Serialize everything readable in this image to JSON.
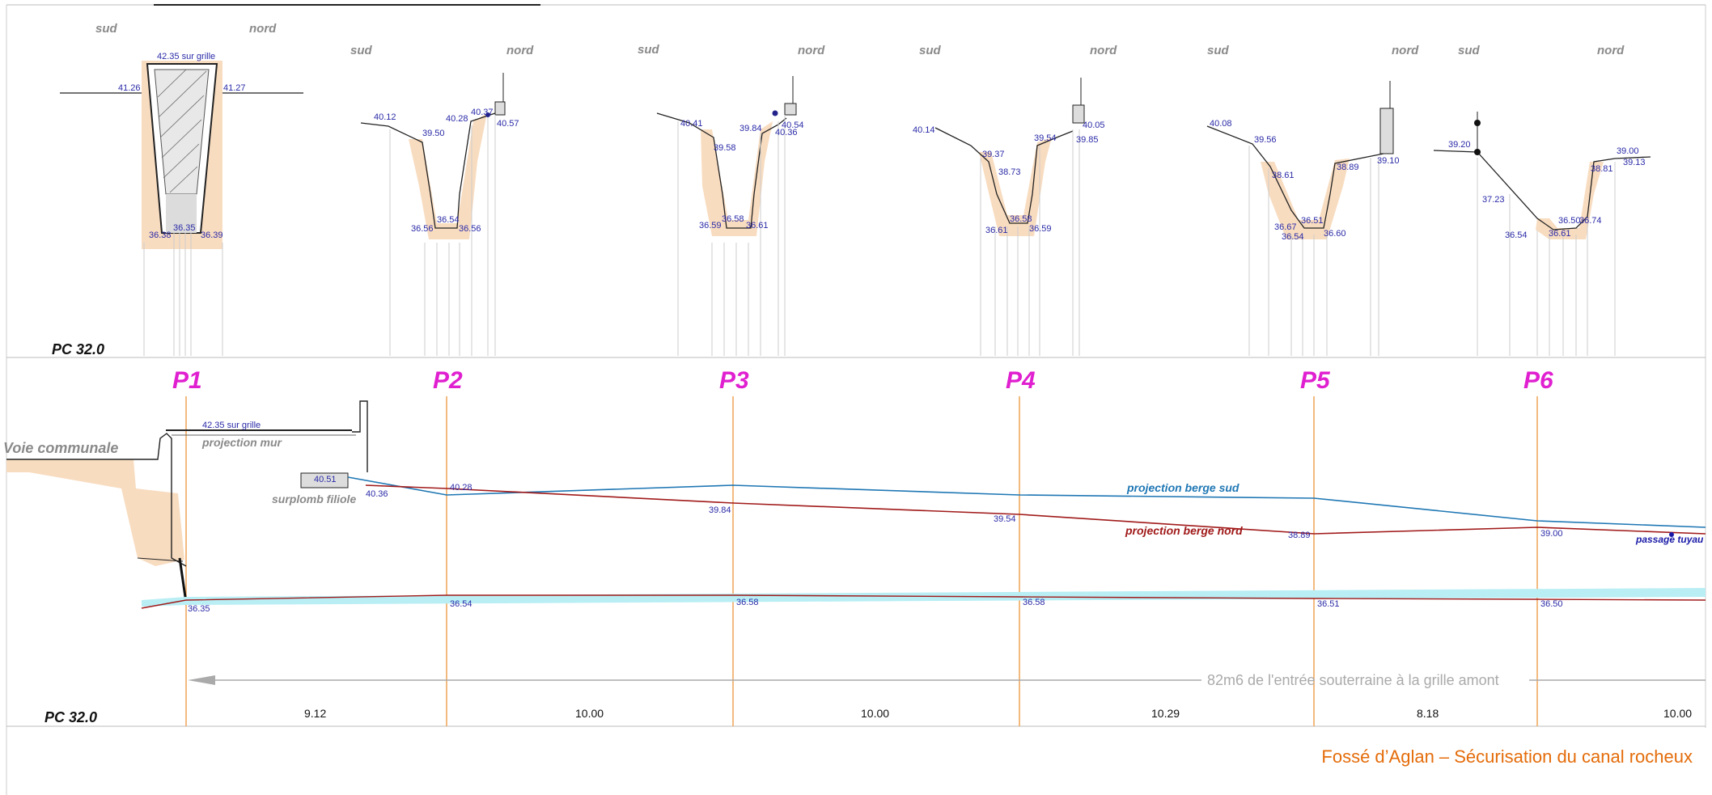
{
  "colors": {
    "profile_label": "#e020d0",
    "dimension": "#2a2aa8",
    "berge_sud": "#1f77b4",
    "berge_nord": "#a11a1a",
    "guide": "#f0a860",
    "soil": "#f8dcc0",
    "water": "#b8eef4",
    "orientation": "#8a8a8a",
    "footer": "#e46c0a"
  },
  "orientation": {
    "south": "sud",
    "north": "nord"
  },
  "pc_label": "PC 32.0",
  "profiles": [
    {
      "label": "P1",
      "elevations": [
        "42.35 sur grille",
        "41.26",
        "41.27",
        "36.38",
        "36.35",
        "36.39"
      ]
    },
    {
      "label": "P2",
      "elevations": [
        "40.12",
        "39.50",
        "40.28",
        "40.37",
        "40.57",
        "36.56",
        "36.54",
        "36.56"
      ]
    },
    {
      "label": "P3",
      "elevations": [
        "40.41",
        "39.58",
        "39.84",
        "40.54",
        "40.36",
        "36.59",
        "36.58",
        "36.61"
      ]
    },
    {
      "label": "P4",
      "elevations": [
        "40.14",
        "39.37",
        "38.73",
        "39.54",
        "40.05",
        "39.85",
        "36.61",
        "36.58",
        "36.59"
      ]
    },
    {
      "label": "P5",
      "elevations": [
        "40.08",
        "39.56",
        "38.61",
        "38.89",
        "39.10",
        "36.67",
        "36.54",
        "36.51",
        "36.60"
      ]
    },
    {
      "label": "P6",
      "elevations": [
        "39.20",
        "37.23",
        "39.00",
        "39.13",
        "38.81",
        "36.54",
        "36.50",
        "36.61",
        "36.74"
      ]
    }
  ],
  "longitudinal": {
    "voie": "Voie communale",
    "grille": "42.35 sur grille",
    "projection_mur": "projection mur",
    "surplomb": "surplomb filiole",
    "surplomb_value": "40.51",
    "berge_sud_label": "projection berge sud",
    "berge_nord_label": "projection berge nord",
    "passage": "passage tuyau",
    "top_values": [
      "40.36",
      "40.28",
      "39.84",
      "39.54",
      "38.89",
      "39.00"
    ],
    "bottom_values": [
      "36.35",
      "36.54",
      "36.58",
      "36.58",
      "36.51",
      "36.50"
    ],
    "arrow_text": "82m6 de l'entrée souterraine à la grille amont",
    "distances": [
      "9.12",
      "10.00",
      "10.00",
      "10.29",
      "8.18",
      "10.00"
    ]
  },
  "footer": "Fossé d’Aglan – Sécurisation du canal rocheux"
}
